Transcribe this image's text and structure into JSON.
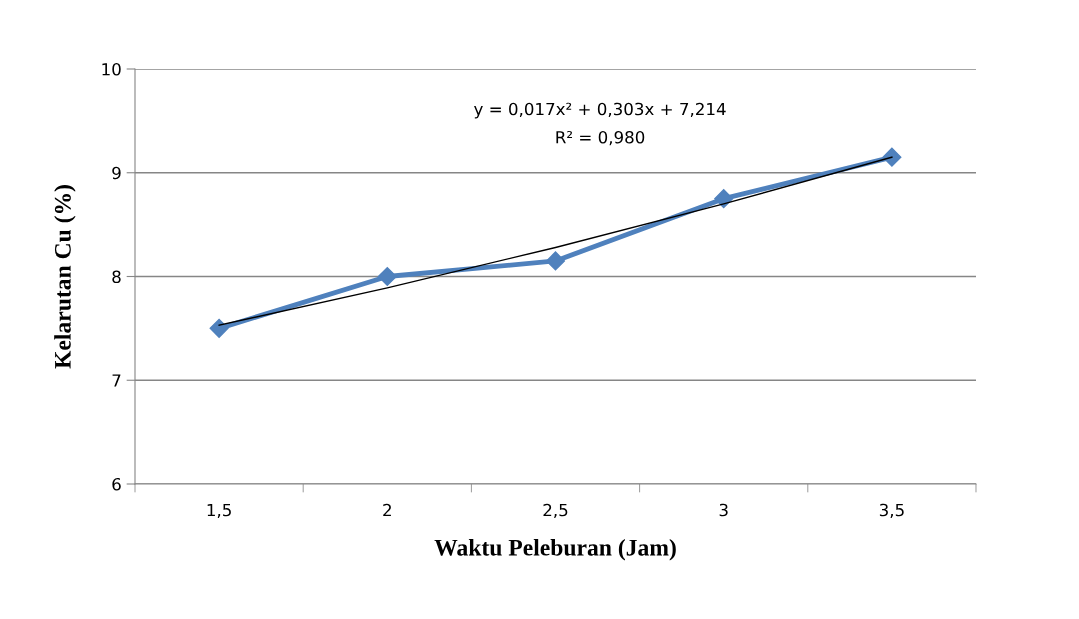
{
  "chart_data": {
    "type": "line",
    "xlabel": "Waktu Peleburan (Jam)",
    "ylabel": "Kelarutan Cu (%)",
    "categories": [
      "1,5",
      "2",
      "2,5",
      "3",
      "3,5"
    ],
    "series": [
      {
        "color": "#4f81bd",
        "values": [
          7.5,
          8.0,
          8.15,
          8.75,
          9.15
        ],
        "marker": "diamond"
      },
      {
        "color": "#000000",
        "values": [
          7.53,
          7.89,
          8.28,
          8.7,
          9.15
        ],
        "marker": "none"
      }
    ],
    "ylim": [
      6,
      10
    ],
    "yticks": [
      6,
      7,
      8,
      9,
      10
    ],
    "grid": "y",
    "annotations": [
      "y = 0,017x² + 0,303x + 7,214",
      "R² = 0,980"
    ]
  }
}
